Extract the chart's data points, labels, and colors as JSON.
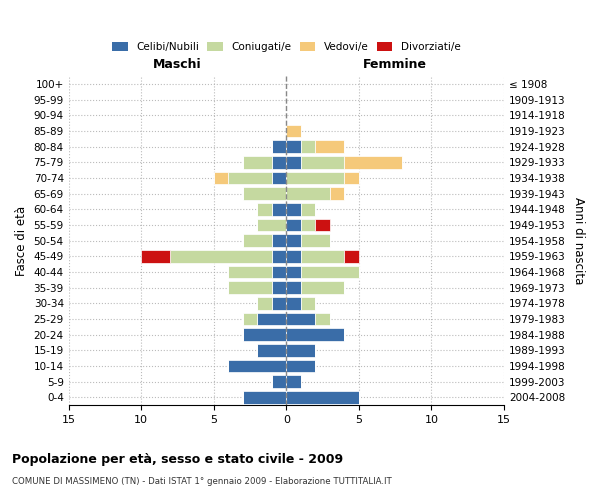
{
  "age_groups": [
    "0-4",
    "5-9",
    "10-14",
    "15-19",
    "20-24",
    "25-29",
    "30-34",
    "35-39",
    "40-44",
    "45-49",
    "50-54",
    "55-59",
    "60-64",
    "65-69",
    "70-74",
    "75-79",
    "80-84",
    "85-89",
    "90-94",
    "95-99",
    "100+"
  ],
  "birth_years": [
    "2004-2008",
    "1999-2003",
    "1994-1998",
    "1989-1993",
    "1984-1988",
    "1979-1983",
    "1974-1978",
    "1969-1973",
    "1964-1968",
    "1959-1963",
    "1954-1958",
    "1949-1953",
    "1944-1948",
    "1939-1943",
    "1934-1938",
    "1929-1933",
    "1924-1928",
    "1919-1923",
    "1914-1918",
    "1909-1913",
    "≤ 1908"
  ],
  "male": {
    "celibe": [
      3,
      1,
      4,
      2,
      3,
      2,
      1,
      1,
      1,
      1,
      1,
      0,
      1,
      0,
      1,
      1,
      1,
      0,
      0,
      0,
      0
    ],
    "coniugato": [
      0,
      0,
      0,
      0,
      0,
      1,
      1,
      3,
      3,
      7,
      2,
      2,
      1,
      3,
      3,
      2,
      0,
      0,
      0,
      0,
      0
    ],
    "vedovo": [
      0,
      0,
      0,
      0,
      0,
      0,
      0,
      0,
      0,
      0,
      0,
      0,
      0,
      0,
      1,
      0,
      0,
      0,
      0,
      0,
      0
    ],
    "divorziato": [
      0,
      0,
      0,
      0,
      0,
      0,
      0,
      0,
      0,
      2,
      0,
      0,
      0,
      0,
      0,
      0,
      0,
      0,
      0,
      0,
      0
    ]
  },
  "female": {
    "nubile": [
      5,
      1,
      2,
      2,
      4,
      2,
      1,
      1,
      1,
      1,
      1,
      1,
      1,
      0,
      0,
      1,
      1,
      0,
      0,
      0,
      0
    ],
    "coniugata": [
      0,
      0,
      0,
      0,
      0,
      1,
      1,
      3,
      4,
      3,
      2,
      1,
      1,
      3,
      4,
      3,
      1,
      0,
      0,
      0,
      0
    ],
    "vedova": [
      0,
      0,
      0,
      0,
      0,
      0,
      0,
      0,
      0,
      0,
      0,
      0,
      0,
      1,
      1,
      4,
      2,
      1,
      0,
      0,
      0
    ],
    "divorziata": [
      0,
      0,
      0,
      0,
      0,
      0,
      0,
      0,
      0,
      1,
      0,
      1,
      0,
      0,
      0,
      0,
      0,
      0,
      0,
      0,
      0
    ]
  },
  "colors": {
    "celibe": "#3a6da8",
    "coniugato": "#c5d9a0",
    "vedovo": "#f5c97a",
    "divorziato": "#cc1111"
  },
  "xlim": 15,
  "title": "Popolazione per età, sesso e stato civile - 2009",
  "subtitle": "COMUNE DI MASSIMENO (TN) - Dati ISTAT 1° gennaio 2009 - Elaborazione TUTTITALIA.IT",
  "ylabel": "Fasce di età",
  "ylabel_right": "Anni di nascita",
  "label_maschi": "Maschi",
  "label_femmine": "Femmine",
  "legend_labels": [
    "Celibi/Nubili",
    "Coniugati/e",
    "Vedovi/e",
    "Divorziati/e"
  ],
  "xticks": [
    -15,
    -10,
    -5,
    0,
    5,
    10,
    15
  ]
}
